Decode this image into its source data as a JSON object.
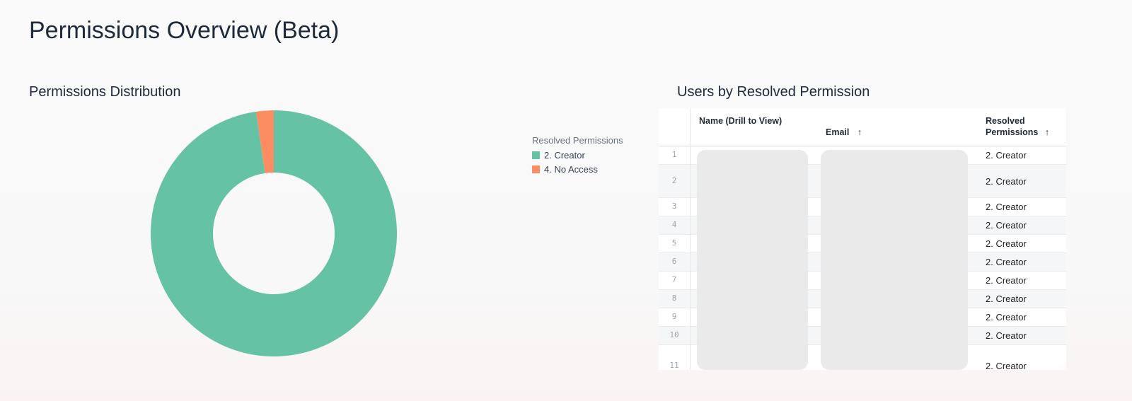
{
  "page_title": "Permissions Overview (Beta)",
  "chart_data": {
    "type": "pie",
    "title": "Permissions Distribution",
    "donut": true,
    "legend_title": "Resolved Permissions",
    "legend_position": "right",
    "categories": [
      "2. Creator",
      "4. No Access"
    ],
    "values_percent": [
      97.7,
      2.3
    ],
    "colors": [
      "#66c2a5",
      "#fc8d62"
    ]
  },
  "table": {
    "title": "Users by Resolved Permission",
    "columns": [
      "Name (Drill to View)",
      "Email",
      "Resolved Permissions"
    ],
    "sort_icon": "arrow-up-icon",
    "rows": [
      {
        "index": "1",
        "permission": "2. Creator"
      },
      {
        "index": "2",
        "permission": "2. Creator"
      },
      {
        "index": "3",
        "permission": "2. Creator"
      },
      {
        "index": "4",
        "permission": "2. Creator"
      },
      {
        "index": "5",
        "permission": "2. Creator"
      },
      {
        "index": "6",
        "permission": "2. Creator"
      },
      {
        "index": "7",
        "permission": "2. Creator"
      },
      {
        "index": "8",
        "permission": "2. Creator"
      },
      {
        "index": "9",
        "permission": "2. Creator"
      },
      {
        "index": "10",
        "permission": "2. Creator"
      },
      {
        "index": "11",
        "permission": "2. Creator"
      }
    ]
  }
}
